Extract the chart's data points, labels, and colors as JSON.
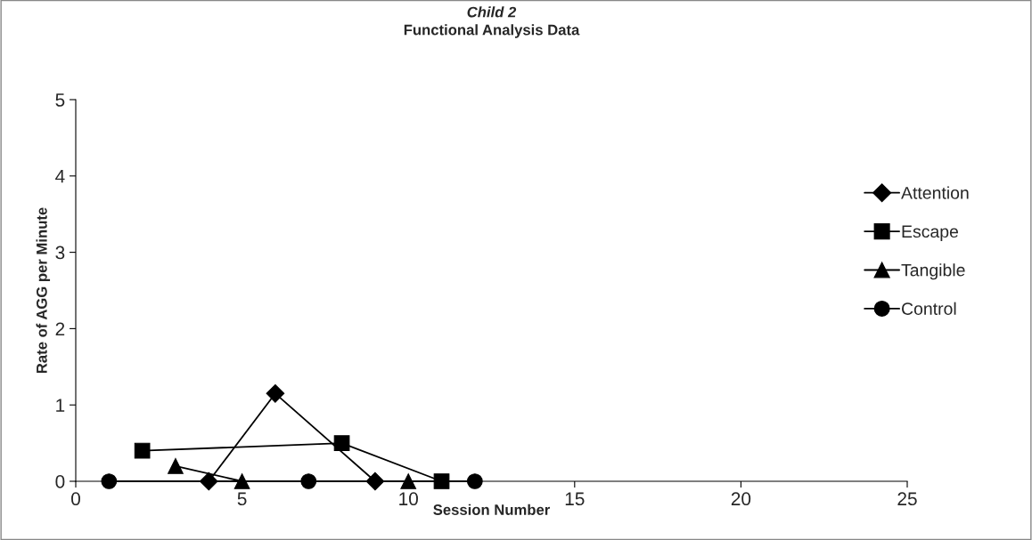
{
  "chart_data": {
    "type": "line",
    "title": "Child 2",
    "subtitle": "Functional Analysis Data",
    "xlabel": "Session Number",
    "ylabel": "Rate of AGG per Minute",
    "xlim": [
      0,
      25
    ],
    "xticks": [
      0,
      5,
      10,
      15,
      20,
      25
    ],
    "ylim": [
      0,
      5
    ],
    "yticks": [
      0,
      1,
      2,
      3,
      4,
      5
    ],
    "grid": false,
    "legend": "right",
    "line_style": "solid",
    "series": [
      {
        "name": "Attention",
        "color": "#000000",
        "marker": "diamond",
        "x": [
          4,
          6,
          9
        ],
        "values": [
          0,
          1.15,
          0
        ]
      },
      {
        "name": "Escape",
        "color": "#000000",
        "marker": "square",
        "x": [
          2,
          8,
          11
        ],
        "values": [
          0.4,
          0.5,
          0
        ]
      },
      {
        "name": "Tangible",
        "color": "#000000",
        "marker": "triangle",
        "x": [
          3,
          5,
          10
        ],
        "values": [
          0.2,
          0,
          0
        ]
      },
      {
        "name": "Control",
        "color": "#000000",
        "marker": "circle",
        "x": [
          1,
          7,
          12
        ],
        "values": [
          0,
          0,
          0
        ]
      }
    ]
  }
}
